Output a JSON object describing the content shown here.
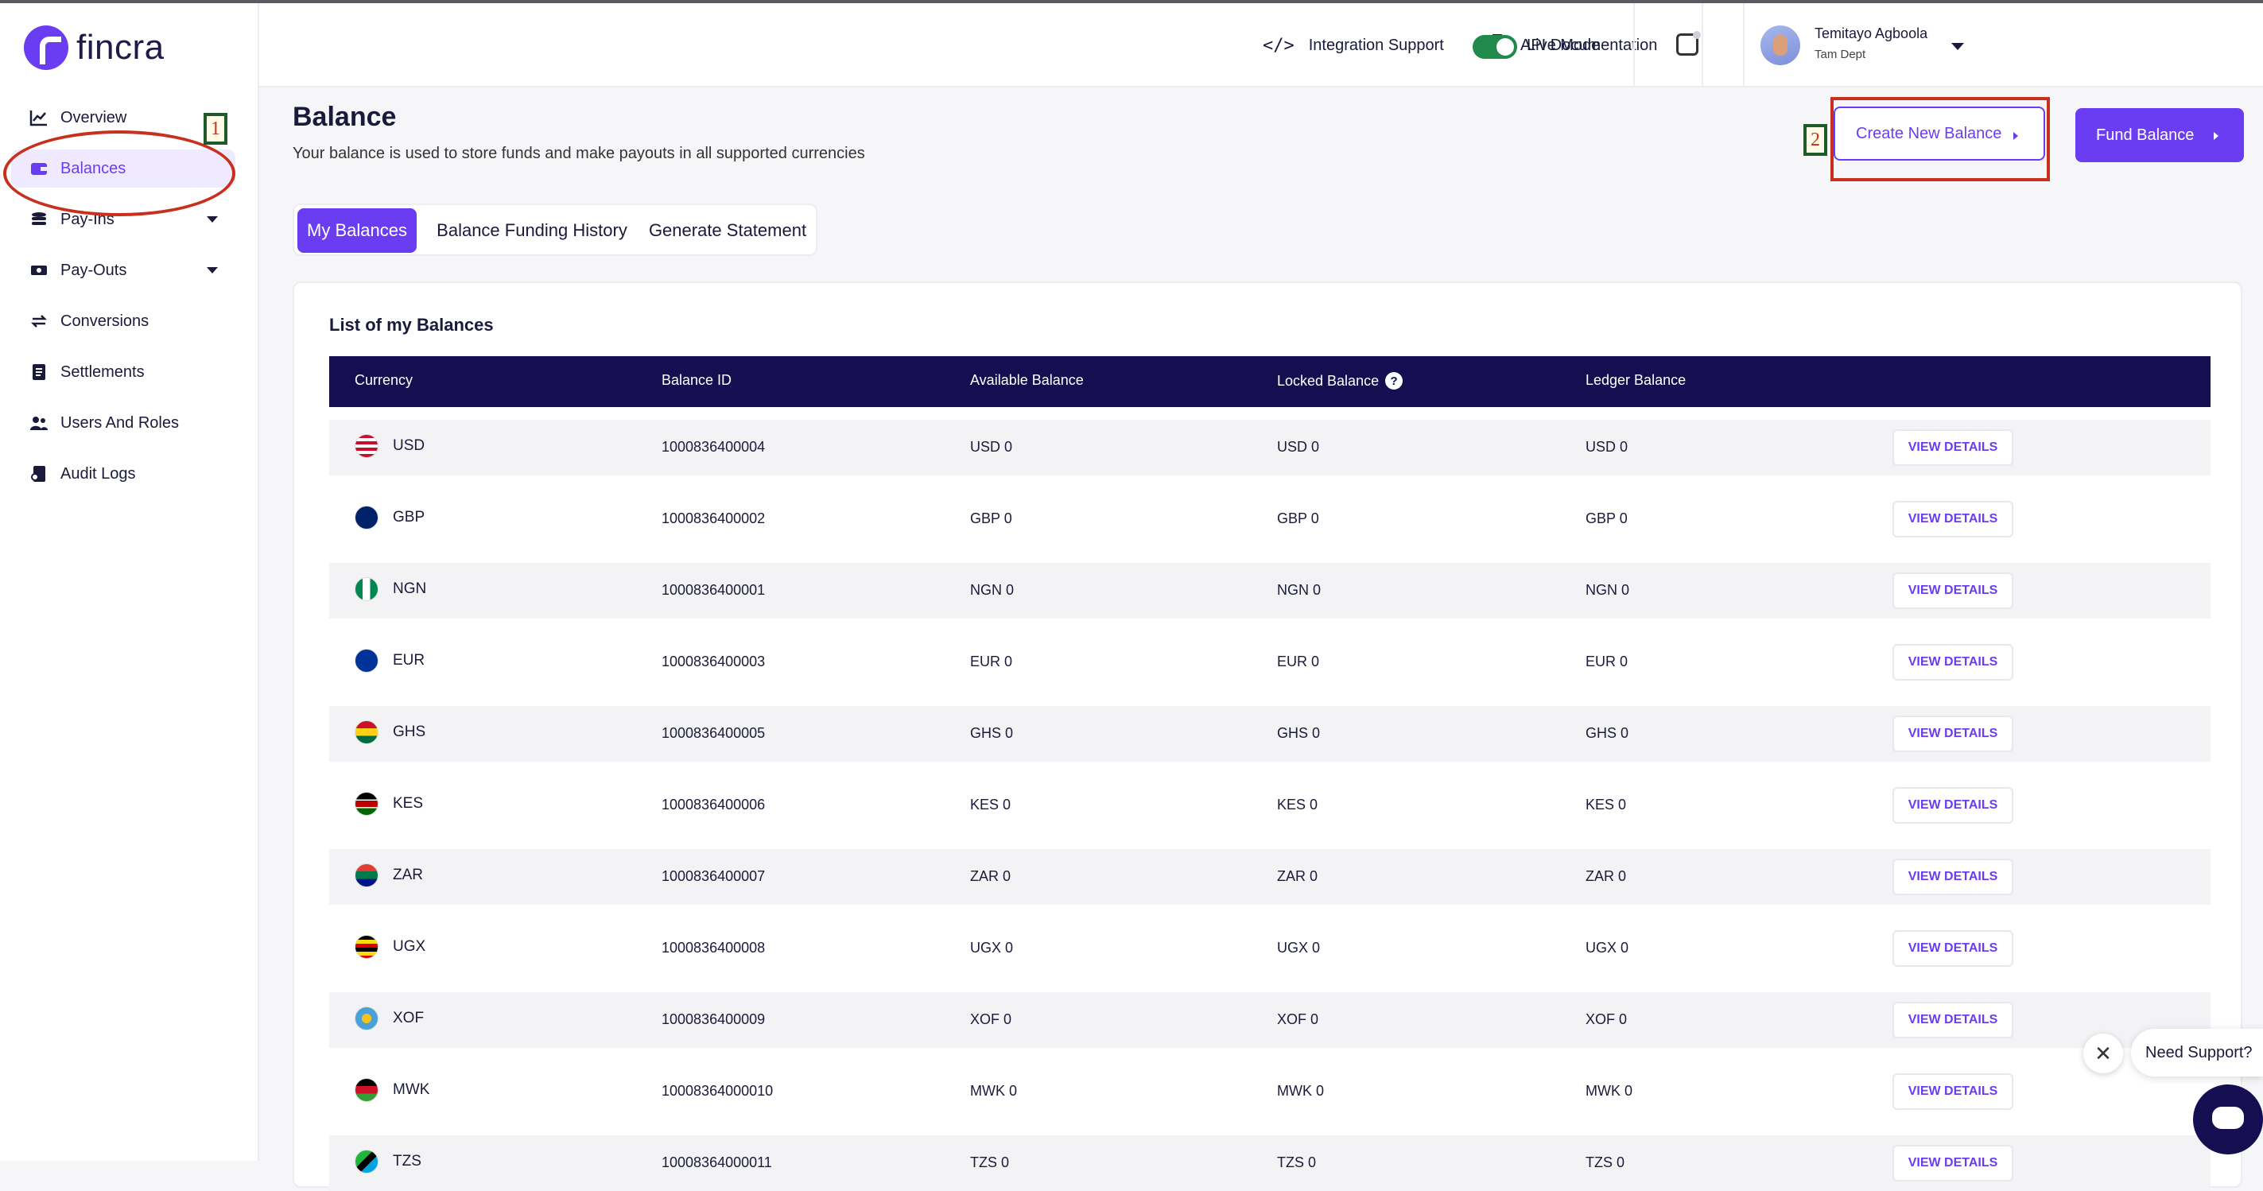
{
  "brand": {
    "name": "fincra"
  },
  "sidebar": {
    "items": [
      {
        "label": "Overview",
        "icon": "chart-icon"
      },
      {
        "label": "Balances",
        "icon": "wallet-icon",
        "active": true
      },
      {
        "label": "Pay-Ins",
        "icon": "coins-icon",
        "dropdown": true
      },
      {
        "label": "Pay-Outs",
        "icon": "money-icon",
        "dropdown": true
      },
      {
        "label": "Conversions",
        "icon": "swap-icon"
      },
      {
        "label": "Settlements",
        "icon": "document-icon"
      },
      {
        "label": "Users And Roles",
        "icon": "users-icon"
      },
      {
        "label": "Audit Logs",
        "icon": "log-icon"
      }
    ]
  },
  "topbar": {
    "integration_support": "Integration Support",
    "api_docs": "API Documentation",
    "live_mode": "Live Mode",
    "user_name": "Temitayo Agboola",
    "user_dept": "Tam Dept"
  },
  "annotations": {
    "one": "1",
    "two": "2"
  },
  "page": {
    "title": "Balance",
    "subtitle": "Your balance is used to store funds and make payouts in all supported currencies",
    "create_button": "Create New Balance",
    "fund_button": "Fund Balance"
  },
  "tabs": [
    "My Balances",
    "Balance Funding History",
    "Generate Statement"
  ],
  "table": {
    "title": "List of my Balances",
    "headers": [
      "Currency",
      "Balance ID",
      "Available Balance",
      "Locked Balance",
      "Ledger Balance"
    ],
    "help_glyph": "?",
    "action_label": "VIEW DETAILS",
    "rows": [
      {
        "currency": "USD",
        "id": "1000836400004",
        "available": "USD 0",
        "locked": "USD 0",
        "ledger": "USD 0"
      },
      {
        "currency": "GBP",
        "id": "1000836400002",
        "available": "GBP 0",
        "locked": "GBP 0",
        "ledger": "GBP 0"
      },
      {
        "currency": "NGN",
        "id": "1000836400001",
        "available": "NGN 0",
        "locked": "NGN 0",
        "ledger": "NGN 0"
      },
      {
        "currency": "EUR",
        "id": "1000836400003",
        "available": "EUR 0",
        "locked": "EUR 0",
        "ledger": "EUR 0"
      },
      {
        "currency": "GHS",
        "id": "1000836400005",
        "available": "GHS 0",
        "locked": "GHS 0",
        "ledger": "GHS 0"
      },
      {
        "currency": "KES",
        "id": "1000836400006",
        "available": "KES 0",
        "locked": "KES 0",
        "ledger": "KES 0"
      },
      {
        "currency": "ZAR",
        "id": "1000836400007",
        "available": "ZAR 0",
        "locked": "ZAR 0",
        "ledger": "ZAR 0"
      },
      {
        "currency": "UGX",
        "id": "1000836400008",
        "available": "UGX 0",
        "locked": "UGX 0",
        "ledger": "UGX 0"
      },
      {
        "currency": "XOF",
        "id": "1000836400009",
        "available": "XOF 0",
        "locked": "XOF 0",
        "ledger": "XOF 0"
      },
      {
        "currency": "MWK",
        "id": "10008364000010",
        "available": "MWK 0",
        "locked": "MWK 0",
        "ledger": "MWK 0"
      },
      {
        "currency": "TZS",
        "id": "10008364000011",
        "available": "TZS 0",
        "locked": "TZS 0",
        "ledger": "TZS 0"
      }
    ]
  },
  "support": {
    "label": "Need Support?",
    "close_glyph": "✕"
  },
  "colors": {
    "accent": "#6b3df2",
    "table_header": "#150f52",
    "annotation": "#c8301e",
    "live_toggle": "#1f8a4c"
  }
}
